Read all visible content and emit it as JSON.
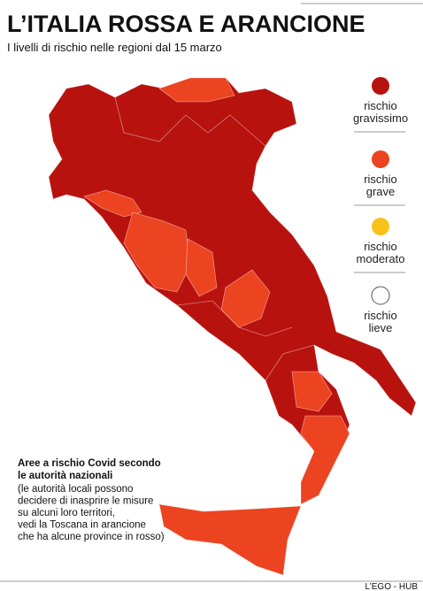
{
  "header": {
    "title": "L’ITALIA ROSSA E ARANCIONE",
    "subtitle": "I livelli di rischio nelle regioni dal 15 marzo"
  },
  "legend": [
    {
      "label": [
        "rischio",
        "gravissimo"
      ],
      "color": "#b8120f"
    },
    {
      "label": [
        "rischio",
        "grave"
      ],
      "color": "#ec4320"
    },
    {
      "label": [
        "rischio",
        "moderato"
      ],
      "color": "#f9c21a"
    },
    {
      "label": [
        "rischio",
        "lieve"
      ],
      "color": "#ffffff"
    }
  ],
  "note": {
    "title": [
      "Aree a rischio Covid secondo",
      "le autorità nazionali"
    ],
    "lines": [
      "(le autorità locali possono",
      "decidere di inasprire le misure",
      "su alcuni loro territori,",
      "vedi la Toscana in arancione",
      "che ha alcune province in rosso)"
    ]
  },
  "credit": "L’EGO - HUB"
}
